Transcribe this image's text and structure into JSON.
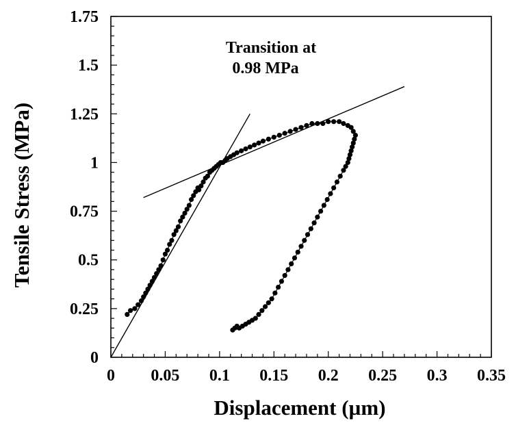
{
  "chart_data": {
    "type": "scatter",
    "title": "",
    "xlabel": "Displacement  (µm)",
    "ylabel": "Tensile  Stress  (MPa)",
    "xlim": [
      0,
      0.35
    ],
    "ylim": [
      0,
      1.75
    ],
    "x_ticks": [
      "0",
      "0.05",
      "0.1",
      "0.15",
      "0.2",
      "0.25",
      "0.3",
      "0.35"
    ],
    "y_ticks": [
      "0",
      "0.25",
      "0.5",
      "0.75",
      "1",
      "1.25",
      "1.5",
      "1.75"
    ],
    "grid": false,
    "annotation": {
      "line1": "Transition at",
      "line2": "0.98  MPa"
    },
    "series": [
      {
        "x": [
          0.015,
          0.018,
          0.022,
          0.025,
          0.028,
          0.03,
          0.032,
          0.034,
          0.036,
          0.038,
          0.04,
          0.042,
          0.044,
          0.046,
          0.048,
          0.05,
          0.052,
          0.054,
          0.056,
          0.058,
          0.06,
          0.062,
          0.064,
          0.066,
          0.068,
          0.07,
          0.072,
          0.074,
          0.076,
          0.078,
          0.08,
          0.081,
          0.083,
          0.085,
          0.087,
          0.089,
          0.091,
          0.093,
          0.095,
          0.097,
          0.099,
          0.101,
          0.103,
          0.105,
          0.107,
          0.11,
          0.113,
          0.116,
          0.12,
          0.124,
          0.128,
          0.132,
          0.136,
          0.14,
          0.145,
          0.15,
          0.155,
          0.16,
          0.165,
          0.17,
          0.175,
          0.18,
          0.185,
          0.19,
          0.195,
          0.2,
          0.205,
          0.21,
          0.214,
          0.218,
          0.221,
          0.223,
          0.225,
          0.224,
          0.223,
          0.222,
          0.221,
          0.22,
          0.219,
          0.218,
          0.216,
          0.214,
          0.211,
          0.208,
          0.205,
          0.202,
          0.199,
          0.196,
          0.193,
          0.19,
          0.187,
          0.184,
          0.181,
          0.178,
          0.175,
          0.172,
          0.169,
          0.166,
          0.163,
          0.16,
          0.157,
          0.154,
          0.151,
          0.148,
          0.145,
          0.142,
          0.139,
          0.136,
          0.133,
          0.13,
          0.127,
          0.124,
          0.121,
          0.118,
          0.116,
          0.114,
          0.112
        ],
        "y": [
          0.22,
          0.24,
          0.25,
          0.27,
          0.29,
          0.31,
          0.33,
          0.35,
          0.37,
          0.39,
          0.41,
          0.43,
          0.45,
          0.47,
          0.5,
          0.53,
          0.55,
          0.58,
          0.6,
          0.63,
          0.65,
          0.67,
          0.7,
          0.72,
          0.74,
          0.76,
          0.78,
          0.81,
          0.83,
          0.85,
          0.87,
          0.86,
          0.88,
          0.9,
          0.92,
          0.93,
          0.95,
          0.96,
          0.97,
          0.98,
          0.99,
          1.0,
          1.0,
          1.01,
          1.02,
          1.03,
          1.04,
          1.05,
          1.06,
          1.07,
          1.08,
          1.09,
          1.1,
          1.11,
          1.12,
          1.13,
          1.14,
          1.15,
          1.16,
          1.17,
          1.18,
          1.19,
          1.2,
          1.2,
          1.2,
          1.21,
          1.21,
          1.21,
          1.2,
          1.19,
          1.18,
          1.16,
          1.14,
          1.12,
          1.1,
          1.08,
          1.06,
          1.04,
          1.02,
          1.0,
          0.98,
          0.96,
          0.93,
          0.9,
          0.87,
          0.84,
          0.81,
          0.78,
          0.75,
          0.72,
          0.69,
          0.66,
          0.63,
          0.6,
          0.57,
          0.54,
          0.51,
          0.48,
          0.45,
          0.42,
          0.39,
          0.36,
          0.33,
          0.3,
          0.28,
          0.26,
          0.24,
          0.22,
          0.2,
          0.19,
          0.18,
          0.17,
          0.16,
          0.15,
          0.16,
          0.15,
          0.14
        ]
      }
    ],
    "fit_lines": [
      {
        "x": [
          0.0,
          0.128
        ],
        "y": [
          0.0,
          1.25
        ]
      },
      {
        "x": [
          0.03,
          0.27
        ],
        "y": [
          0.82,
          1.39
        ]
      }
    ]
  }
}
